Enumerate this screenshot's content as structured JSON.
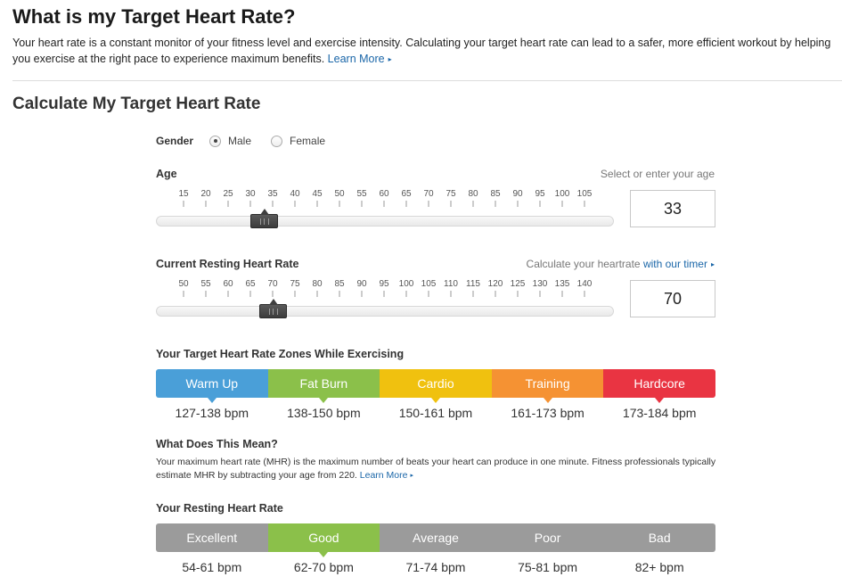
{
  "header": {
    "title": "What is my Target Heart Rate?",
    "intro": "Your heart rate is a constant monitor of your fitness level and exercise intensity. Calculating your target heart rate can lead to a safer, more efficient workout by helping you exercise at the right pace to experience maximum benefits.",
    "learn_more": "Learn More",
    "arrow_icon": "▸"
  },
  "calculator": {
    "title": "Calculate My Target Heart Rate",
    "gender": {
      "label": "Gender",
      "options": [
        "Male",
        "Female"
      ],
      "selected": "Male"
    },
    "age": {
      "label": "Age",
      "hint": "Select or enter your age",
      "value": "33",
      "ticks": [
        "15",
        "20",
        "25",
        "30",
        "35",
        "40",
        "45",
        "50",
        "55",
        "60",
        "65",
        "70",
        "75",
        "80",
        "85",
        "90",
        "95",
        "100",
        "105"
      ]
    },
    "resting": {
      "label": "Current Resting Heart Rate",
      "hint": "Calculate your heartrate",
      "hint_link": "with our timer",
      "value": "70",
      "ticks": [
        "50",
        "55",
        "60",
        "65",
        "70",
        "75",
        "80",
        "85",
        "90",
        "95",
        "100",
        "105",
        "110",
        "115",
        "120",
        "125",
        "130",
        "135",
        "140"
      ]
    }
  },
  "zones": {
    "title": "Your Target Heart Rate Zones While Exercising",
    "items": [
      {
        "label": "Warm Up",
        "value": "127-138 bpm",
        "color": "#4a9fd8"
      },
      {
        "label": "Fat Burn",
        "value": "138-150 bpm",
        "color": "#8bc04a"
      },
      {
        "label": "Cardio",
        "value": "150-161 bpm",
        "color": "#f0c10f"
      },
      {
        "label": "Training",
        "value": "161-173 bpm",
        "color": "#f59233"
      },
      {
        "label": "Hardcore",
        "value": "173-184 bpm",
        "color": "#e93442"
      }
    ]
  },
  "meaning": {
    "title": "What Does This Mean?",
    "text": "Your maximum heart rate (MHR) is the maximum number of beats your heart can produce in one minute. Fitness professionals typically estimate MHR by subtracting your age from 220.",
    "learn_more": "Learn More"
  },
  "resting_zones": {
    "title": "Your Resting Heart Rate",
    "active_color": "#8bc04a",
    "inactive_color": "#9b9b9b",
    "items": [
      {
        "label": "Excellent",
        "value": "54-61 bpm",
        "active": false
      },
      {
        "label": "Good",
        "value": "62-70 bpm",
        "active": true
      },
      {
        "label": "Average",
        "value": "71-74 bpm",
        "active": false
      },
      {
        "label": "Poor",
        "value": "75-81 bpm",
        "active": false
      },
      {
        "label": "Bad",
        "value": "82+ bpm",
        "active": false
      }
    ]
  }
}
